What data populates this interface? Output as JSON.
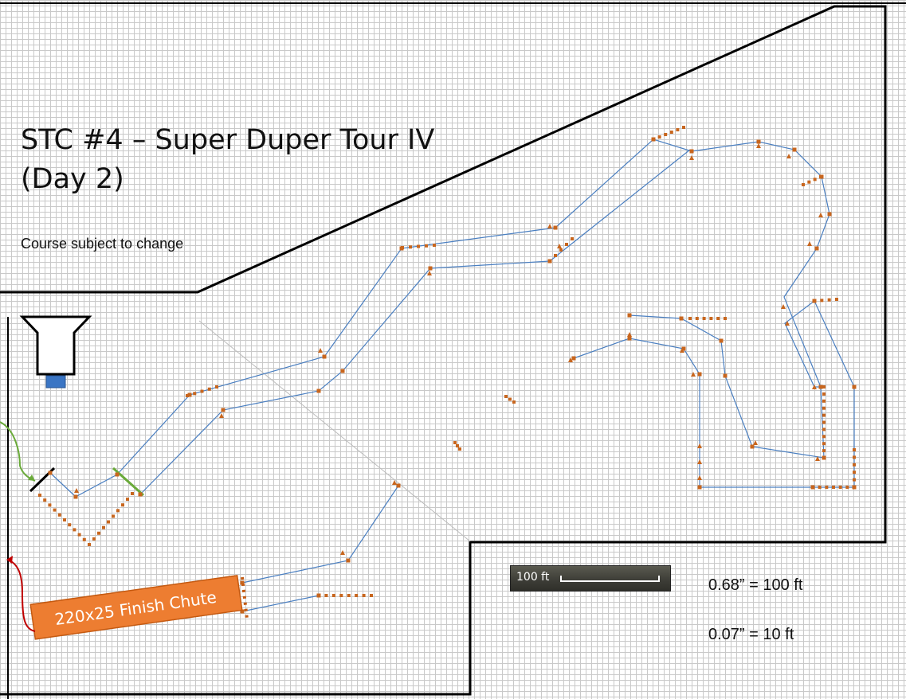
{
  "map": {
    "title_line1": "STC #4 – Super Duper Tour IV",
    "title_line2": "(Day 2)",
    "subtitle": "Course subject to change",
    "finish_chute_label": "220x25 Finish Chute",
    "scale_bar_label": "100 ft",
    "scale_notes": [
      "0.68” = 100 ft",
      "0.07” = 10 ft"
    ],
    "colors": {
      "course_line": "#4a7fc1",
      "cone": "#c8661e",
      "finish_chute": "#ed7d31",
      "start_arrow": "#6aaa3a",
      "finish_arrow": "#c00000",
      "boundary": "#000000",
      "tower_base": "#3a75c4"
    }
  }
}
